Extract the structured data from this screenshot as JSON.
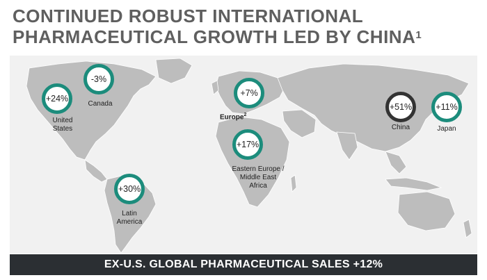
{
  "header": {
    "title_line1": "CONTINUED ROBUST INTERNATIONAL",
    "title_line2": "PHARMACEUTICAL GROWTH LED BY CHINA",
    "title_footnote": "1"
  },
  "regions": [
    {
      "id": "us",
      "growth": "+24%",
      "label": "United States",
      "label_lines": [
        "United",
        "States"
      ],
      "ring_color": "#1c8c7c"
    },
    {
      "id": "canada",
      "growth": "-3%",
      "label": "Canada",
      "label_lines": [
        "Canada"
      ],
      "ring_color": "#1c8c7c"
    },
    {
      "id": "europe",
      "growth": "+7%",
      "label": "Europe",
      "label_lines": [
        "Europe"
      ],
      "footnote": "2",
      "ring_color": "#1c8c7c"
    },
    {
      "id": "eeme",
      "growth": "+17%",
      "label": "Eastern Europe / Middle East Africa",
      "label_lines": [
        "Eastern Europe /",
        "Middle East",
        "Africa"
      ],
      "ring_color": "#1c8c7c"
    },
    {
      "id": "latam",
      "growth": "+30%",
      "label": "Latin America",
      "label_lines": [
        "Latin",
        "America"
      ],
      "ring_color": "#1c8c7c"
    },
    {
      "id": "china",
      "growth": "+51%",
      "label": "China",
      "label_lines": [
        "China"
      ],
      "ring_color": "#333333"
    },
    {
      "id": "japan",
      "growth": "+11%",
      "label": "Japan",
      "label_lines": [
        "Japan"
      ],
      "ring_color": "#1c8c7c"
    }
  ],
  "footer": {
    "text": "EX-U.S. GLOBAL PHARMACEUTICAL SALES +12%"
  },
  "colors": {
    "title": "#5f5f5f",
    "map_land": "#bdbdbd",
    "map_background": "#f1f1f1",
    "ring_default": "#1c8c7c",
    "ring_china": "#333333",
    "footer_bg": "#2b2f33",
    "footer_text": "#ffffff"
  }
}
